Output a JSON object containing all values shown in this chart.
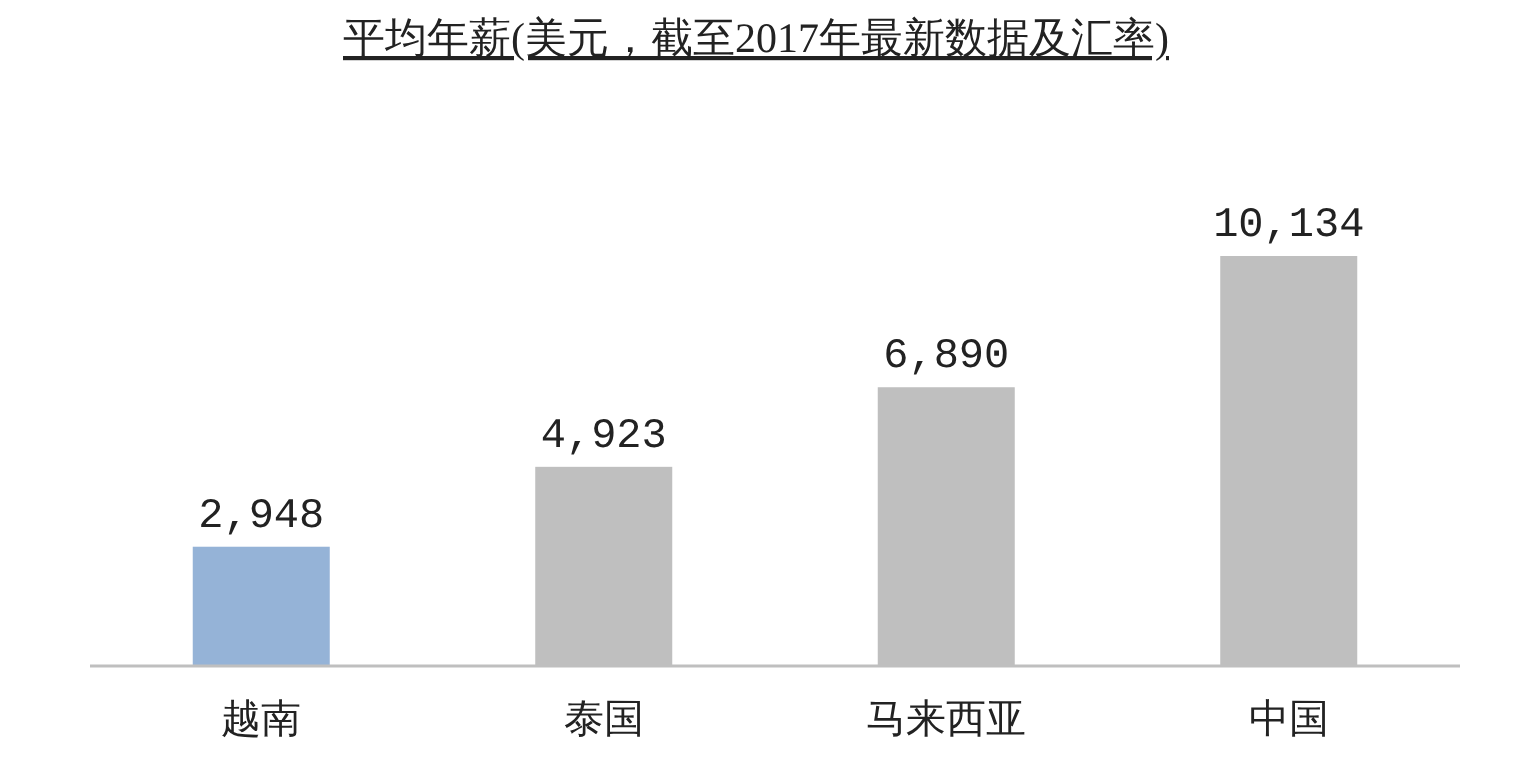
{
  "chart_data": {
    "type": "bar",
    "title": "平均年薪(美元，截至2017年最新数据及汇率)",
    "categories": [
      "越南",
      "泰国",
      "马来西亚",
      "中国"
    ],
    "values": [
      2948,
      4923,
      6890,
      10134
    ],
    "colors": [
      "#95b3d7",
      "#bfbfbf",
      "#bfbfbf",
      "#bfbfbf"
    ],
    "value_labels": [
      "2,948",
      "4,923",
      "6,890",
      "10,134"
    ]
  }
}
